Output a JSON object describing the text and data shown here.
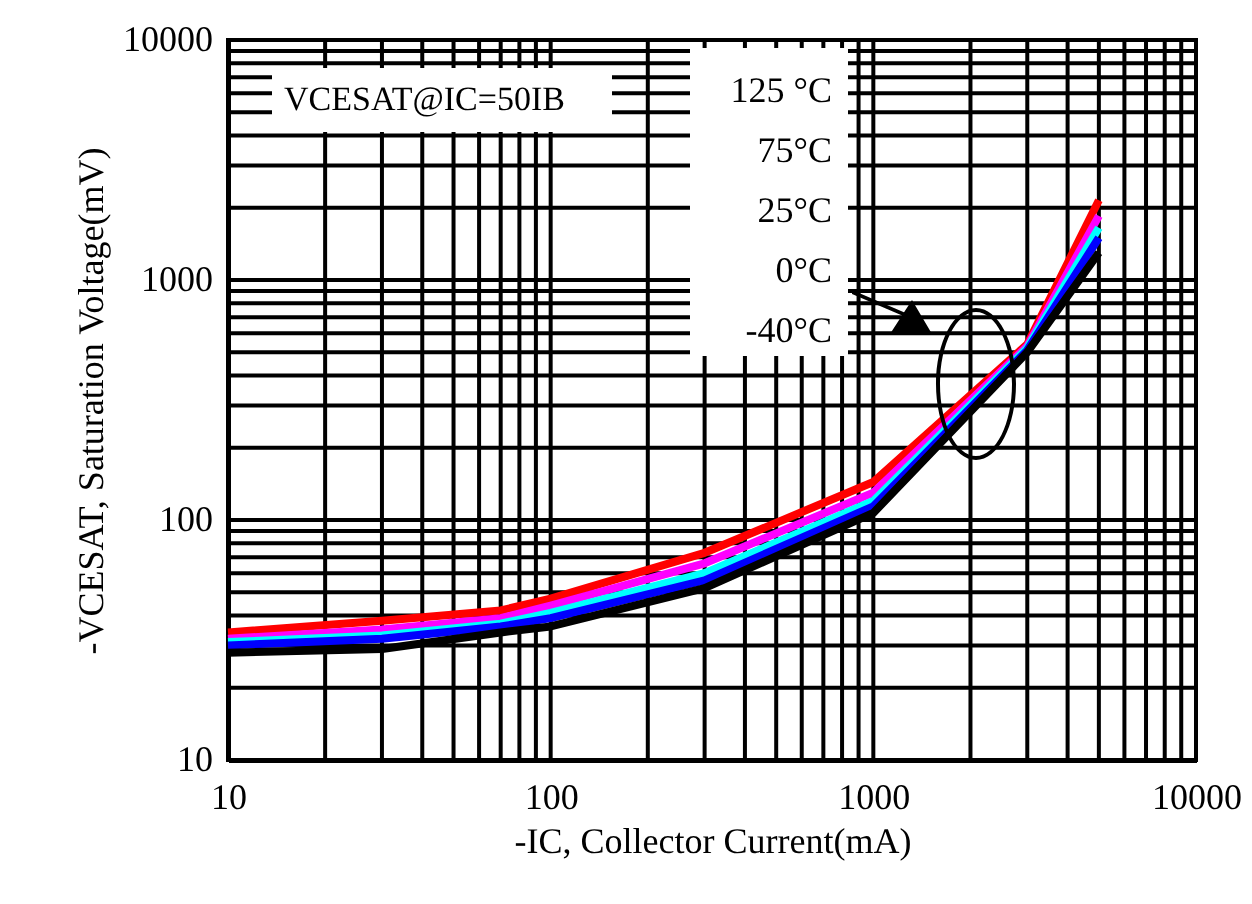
{
  "chart_data": {
    "type": "line",
    "xlabel": "-IC, Collector Current(mA)",
    "ylabel": "-VCESAT, Saturation Voltage(mV)",
    "x": [
      10,
      30,
      70,
      100,
      300,
      1000,
      3000,
      5000
    ],
    "series": [
      {
        "color": "#ff0000",
        "values": [
          34,
          38,
          42,
          47,
          73,
          144,
          540,
          2150
        ]
      },
      {
        "color": "#ff00ff",
        "values": [
          32,
          35,
          39,
          44,
          66,
          130,
          530,
          1850
        ]
      },
      {
        "color": "#00ffff",
        "values": [
          31,
          33,
          37,
          41,
          60,
          120,
          520,
          1650
        ]
      },
      {
        "color": "#0000ff",
        "values": [
          30,
          32,
          36,
          39,
          56,
          114,
          510,
          1500
        ]
      },
      {
        "color": "#000000",
        "values": [
          28,
          29,
          34,
          36,
          52,
          107,
          500,
          1300
        ]
      }
    ],
    "log": "xy",
    "xlim": [
      10,
      10000
    ],
    "ylim": [
      10,
      10000
    ],
    "xticks": [
      10,
      100,
      1000,
      10000
    ],
    "yticks": [
      10,
      100,
      1000,
      10000
    ],
    "grid": true,
    "legend": false,
    "marker": "none",
    "line_style": "solid",
    "annotations": [
      "VCESAT@IC=50IB",
      "125 °C",
      "75°C",
      "25°C",
      "0°C",
      "-40°C"
    ]
  }
}
